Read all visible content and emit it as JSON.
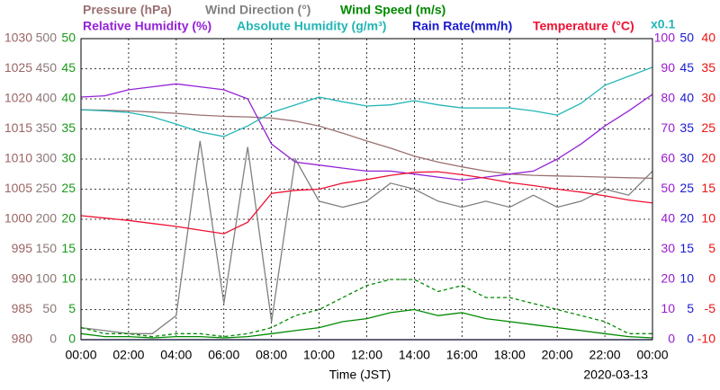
{
  "chart_data": {
    "type": "line",
    "x_label": "Time (JST)",
    "date": "2020-03-13",
    "scale_note": "x0.1",
    "scale_note_color": "#22b5b5",
    "x": [
      0,
      1,
      2,
      3,
      4,
      5,
      6,
      7,
      8,
      9,
      10,
      11,
      12,
      13,
      14,
      15,
      16,
      17,
      18,
      19,
      20,
      21,
      22,
      23,
      24
    ],
    "xlim": [
      0,
      24
    ],
    "xticks": [
      {
        "value": 0,
        "label": "00:00"
      },
      {
        "value": 2,
        "label": "02:00"
      },
      {
        "value": 4,
        "label": "04:00"
      },
      {
        "value": 6,
        "label": "06:00"
      },
      {
        "value": 8,
        "label": "08:00"
      },
      {
        "value": 10,
        "label": "10:00"
      },
      {
        "value": 12,
        "label": "12:00"
      },
      {
        "value": 14,
        "label": "14:00"
      },
      {
        "value": 16,
        "label": "16:00"
      },
      {
        "value": 18,
        "label": "18:00"
      },
      {
        "value": 20,
        "label": "20:00"
      },
      {
        "value": 22,
        "label": "22:00"
      },
      {
        "value": 24,
        "label": "00:00"
      }
    ],
    "grid": true,
    "y_axes": [
      {
        "side": "left",
        "color": "#9c6464",
        "lim": [
          980,
          1030
        ],
        "ticks": [
          980,
          985,
          990,
          995,
          1000,
          1005,
          1010,
          1015,
          1020,
          1025,
          1030
        ]
      },
      {
        "side": "left",
        "color": "#8c7878",
        "lim": [
          0,
          500
        ],
        "ticks": [
          0,
          50,
          100,
          150,
          200,
          250,
          300,
          350,
          400,
          450,
          500
        ]
      },
      {
        "side": "left",
        "color": "#1a9a1a",
        "lim": [
          0,
          50
        ],
        "ticks": [
          0,
          5,
          10,
          15,
          20,
          25,
          30,
          35,
          40,
          45,
          50
        ]
      },
      {
        "side": "right",
        "color": "#9a1ad0",
        "lim": [
          0,
          100
        ],
        "ticks": [
          0,
          10,
          20,
          30,
          40,
          50,
          60,
          70,
          80,
          90,
          100
        ]
      },
      {
        "side": "right",
        "color": "#1a1ad0",
        "lim": [
          0,
          50
        ],
        "ticks": [
          0,
          5,
          10,
          15,
          20,
          25,
          30,
          35,
          40,
          45,
          50
        ]
      },
      {
        "side": "right",
        "color": "#ee1111",
        "lim": [
          -10,
          40
        ],
        "ticks": [
          -10,
          -5,
          0,
          5,
          10,
          15,
          20,
          25,
          30,
          35,
          40
        ]
      }
    ],
    "series": [
      {
        "name": "Pressure (hPa)",
        "color": "#9c7070",
        "axis": 0,
        "values": [
          1018.2,
          1018.1,
          1018,
          1017.8,
          1017.6,
          1017.3,
          1017.1,
          1017,
          1016.8,
          1016.3,
          1015.5,
          1014.3,
          1013,
          1011.8,
          1010.5,
          1009.5,
          1008.7,
          1008,
          1007.5,
          1007.3,
          1007.2,
          1007.1,
          1007,
          1006.9,
          1006.8
        ]
      },
      {
        "name": "Wind Direction (°)",
        "color": "#808080",
        "axis": 1,
        "values": [
          20,
          15,
          10,
          10,
          40,
          330,
          60,
          320,
          30,
          300,
          230,
          220,
          230,
          260,
          250,
          230,
          220,
          230,
          220,
          240,
          220,
          230,
          250,
          240,
          280
        ]
      },
      {
        "name": "Wind Speed (m/s)",
        "color": "#008a00",
        "axis": 2,
        "values": [
          1,
          0.5,
          0.5,
          0.3,
          0.5,
          0.5,
          0.3,
          0.5,
          1,
          1.5,
          2,
          3,
          3.5,
          4.5,
          5,
          4,
          4.5,
          3.5,
          3,
          2.5,
          2,
          1.5,
          1,
          0.5,
          0.3
        ]
      },
      {
        "color": "#008a00",
        "axis": 2,
        "dashed": true,
        "values": [
          2,
          1,
          1,
          0.5,
          1,
          1,
          0.5,
          1,
          2,
          4,
          5,
          7,
          9,
          10,
          10,
          8,
          9,
          7,
          7,
          6,
          5,
          4,
          3,
          1,
          1
        ]
      },
      {
        "name": "Relative Humidity (%)",
        "color": "#9422d6",
        "axis": 3,
        "values": [
          80.6,
          81,
          83,
          84,
          85,
          84,
          83,
          80,
          65,
          59,
          58,
          57,
          56,
          56,
          55,
          54,
          53,
          54,
          55,
          56,
          60,
          65,
          71,
          76,
          81.5
        ]
      },
      {
        "name": "Absolute Humidity (g/m³)",
        "color": "#22b5b5",
        "axis": 3,
        "values": [
          76.4,
          76,
          75.5,
          74,
          71.6,
          69,
          67.5,
          71,
          75.5,
          78,
          80.6,
          79,
          77.6,
          78,
          79.4,
          78,
          77,
          77,
          77,
          76,
          74.6,
          78.5,
          84.5,
          87.5,
          90.5
        ]
      },
      {
        "name": "Rain Rate(mm/h)",
        "color": "#1a1ad0",
        "axis": 4,
        "values": [
          0,
          0,
          0,
          0,
          0,
          0,
          0,
          0,
          0,
          0,
          0,
          0,
          0,
          0,
          0,
          0,
          0,
          0,
          0,
          0,
          0,
          0,
          0,
          0,
          0
        ]
      },
      {
        "name": "Temperature (°C)",
        "color": "#ee1133",
        "axis": 5,
        "values": [
          10.6,
          10.2,
          9.8,
          9.3,
          8.8,
          8.2,
          7.6,
          9.5,
          14.3,
          14.8,
          15,
          16,
          16.6,
          17.3,
          17.8,
          17.9,
          17.4,
          16.8,
          16.1,
          15.6,
          15,
          14.5,
          13.9,
          13.2,
          12.7
        ]
      }
    ]
  }
}
